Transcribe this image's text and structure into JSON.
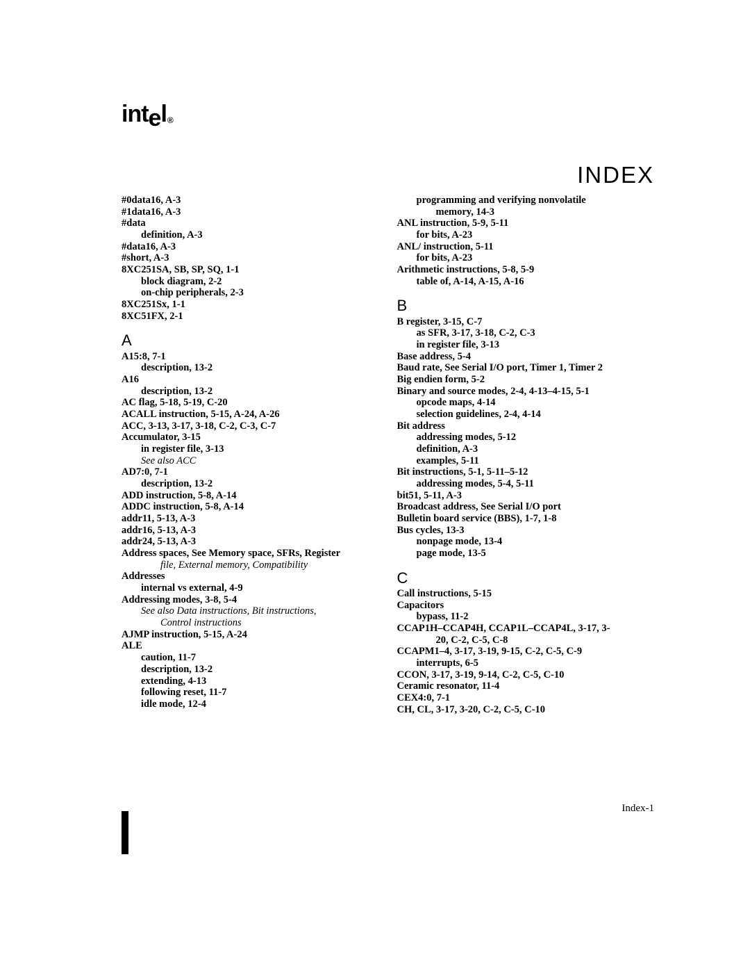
{
  "logo_text": "intel",
  "title": "INDEX",
  "page_number": "Index-1",
  "left_column": [
    {
      "cls": "entry",
      "t": "#0data16,  A-3"
    },
    {
      "cls": "entry",
      "t": "#1data16,  A-3"
    },
    {
      "cls": "entry",
      "t": "#data"
    },
    {
      "cls": "sub1",
      "t": "definition,  A-3"
    },
    {
      "cls": "entry",
      "t": "#data16,  A-3"
    },
    {
      "cls": "entry",
      "t": "#short,  A-3"
    },
    {
      "cls": "entry",
      "t": "8XC251SA, SB, SP, SQ,  1-1"
    },
    {
      "cls": "sub1",
      "t": "block diagram,  2-2"
    },
    {
      "cls": "sub1",
      "t": "on-chip peripherals,  2-3"
    },
    {
      "cls": "entry",
      "t": "8XC251Sx,  1-1"
    },
    {
      "cls": "entry",
      "t": "8XC51FX,  2-1"
    },
    {
      "cls": "letter",
      "t": "A"
    },
    {
      "cls": "entry",
      "t": "A15:8,  7-1"
    },
    {
      "cls": "sub1",
      "t": "description,  13-2"
    },
    {
      "cls": "entry",
      "t": "A16"
    },
    {
      "cls": "sub1",
      "t": "description,  13-2"
    },
    {
      "cls": "entry",
      "t": "AC flag,  5-18, 5-19, C-20"
    },
    {
      "cls": "entry",
      "t": "ACALL instruction,  5-15, A-24, A-26"
    },
    {
      "cls": "entry",
      "t": "ACC,  3-13, 3-17, 3-18, C-2, C-3, C-7"
    },
    {
      "cls": "entry",
      "t": "Accumulator,  3-15"
    },
    {
      "cls": "sub1",
      "t": "in register file,  3-13"
    },
    {
      "cls": "sub1i",
      "t": "See also ACC"
    },
    {
      "cls": "entry",
      "t": "AD7:0,  7-1"
    },
    {
      "cls": "sub1",
      "t": "description,  13-2"
    },
    {
      "cls": "entry",
      "t": "ADD instruction,  5-8, A-14"
    },
    {
      "cls": "entry",
      "t": "ADDC instruction,  5-8, A-14"
    },
    {
      "cls": "entry",
      "t": "addr11,  5-13, A-3"
    },
    {
      "cls": "entry",
      "t": "addr16,  5-13, A-3"
    },
    {
      "cls": "entry",
      "t": "addr24,  5-13, A-3"
    },
    {
      "cls": "mix",
      "parts": [
        {
          "b": "Address spaces"
        },
        {
          "i": ", See Memory space, SFRs, Register"
        }
      ]
    },
    {
      "cls": "sub2i",
      "t": "file, External memory, Compatibility"
    },
    {
      "cls": "entry",
      "t": "Addresses"
    },
    {
      "cls": "sub1",
      "t": "internal vs external,  4-9"
    },
    {
      "cls": "entry",
      "t": "Addressing modes,  3-8, 5-4"
    },
    {
      "cls": "sub1i",
      "t": "See also Data instructions, Bit instructions,"
    },
    {
      "cls": "sub2i",
      "t": "Control instructions"
    },
    {
      "cls": "entry",
      "t": "AJMP instruction,  5-15, A-24"
    },
    {
      "cls": "entry",
      "t": "ALE"
    },
    {
      "cls": "sub1",
      "t": "caution,  11-7"
    },
    {
      "cls": "sub1",
      "t": "description,  13-2"
    },
    {
      "cls": "sub1",
      "t": "extending,  4-13"
    },
    {
      "cls": "sub1",
      "t": "following reset,  11-7"
    },
    {
      "cls": "sub1",
      "t": "idle mode,  12-4"
    }
  ],
  "right_column": [
    {
      "cls": "sub1",
      "t": "programming and verifying nonvolatile"
    },
    {
      "cls": "sub1",
      "t": "        memory,  14-3",
      "indent": 56
    },
    {
      "cls": "entry",
      "t": "ANL instruction,  5-9, 5-11"
    },
    {
      "cls": "sub1",
      "t": "for bits,  A-23"
    },
    {
      "cls": "entry",
      "t": "ANL/ instruction,  5-11"
    },
    {
      "cls": "sub1",
      "t": "for bits,  A-23"
    },
    {
      "cls": "entry",
      "t": "Arithmetic instructions,  5-8, 5-9"
    },
    {
      "cls": "sub1",
      "t": "table of,  A-14, A-15, A-16"
    },
    {
      "cls": "letter",
      "t": "B"
    },
    {
      "cls": "entry",
      "t": "B register,  3-15, C-7"
    },
    {
      "cls": "sub1",
      "t": "as SFR,  3-17, 3-18, C-2, C-3"
    },
    {
      "cls": "sub1",
      "t": "in register file,  3-13"
    },
    {
      "cls": "entry",
      "t": "Base address,  5-4"
    },
    {
      "cls": "mix",
      "parts": [
        {
          "b": "Baud rate"
        },
        {
          "i": ", See Serial I/O port, Timer 1, Timer 2"
        }
      ]
    },
    {
      "cls": "entry",
      "t": "Big endien form,  5-2"
    },
    {
      "cls": "entry",
      "t": "Binary and source modes,  2-4, 4-13–4-15, 5-1"
    },
    {
      "cls": "sub1",
      "t": "opcode maps,  4-14"
    },
    {
      "cls": "sub1",
      "t": "selection guidelines,  2-4, 4-14"
    },
    {
      "cls": "entry",
      "t": "Bit address"
    },
    {
      "cls": "sub1",
      "t": "addressing modes,  5-12"
    },
    {
      "cls": "sub1",
      "t": "definition,  A-3"
    },
    {
      "cls": "sub1",
      "t": "examples,  5-11"
    },
    {
      "cls": "entry",
      "t": "Bit instructions,  5-1, 5-11–5-12"
    },
    {
      "cls": "sub1",
      "t": "addressing modes,  5-4, 5-11"
    },
    {
      "cls": "entry",
      "t": "bit51,  5-11, A-3"
    },
    {
      "cls": "mix",
      "parts": [
        {
          "b": "Broadcast address"
        },
        {
          "i": ", See Serial I/O port"
        }
      ]
    },
    {
      "cls": "entry",
      "t": "Bulletin board service (BBS),  1-7, 1-8"
    },
    {
      "cls": "entry",
      "t": "Bus cycles,  13-3"
    },
    {
      "cls": "sub1",
      "t": "nonpage mode,  13-4"
    },
    {
      "cls": "sub1",
      "t": "page mode,  13-5"
    },
    {
      "cls": "letter",
      "t": "C"
    },
    {
      "cls": "entry",
      "t": "Call instructions,  5-15"
    },
    {
      "cls": "entry",
      "t": "Capacitors"
    },
    {
      "cls": "sub1",
      "t": "bypass,  11-2"
    },
    {
      "cls": "entry",
      "t": "CCAP1H–CCAP4H, CCAP1L–CCAP4L,  3-17, 3-"
    },
    {
      "cls": "sub1",
      "t": "20, C-2, C-5, C-8",
      "indent": 56
    },
    {
      "cls": "entry",
      "t": "CCAPM1–4,  3-17, 3-19, 9-15, C-2, C-5, C-9"
    },
    {
      "cls": "sub1",
      "t": "interrupts,  6-5"
    },
    {
      "cls": "entry",
      "t": "CCON,  3-17, 3-19, 9-14, C-2, C-5, C-10"
    },
    {
      "cls": "entry",
      "t": "Ceramic resonator,  11-4"
    },
    {
      "cls": "entry",
      "t": "CEX4:0,  7-1"
    },
    {
      "cls": "entry",
      "t": "CH, CL,  3-17, 3-20, C-2, C-5, C-10"
    }
  ]
}
